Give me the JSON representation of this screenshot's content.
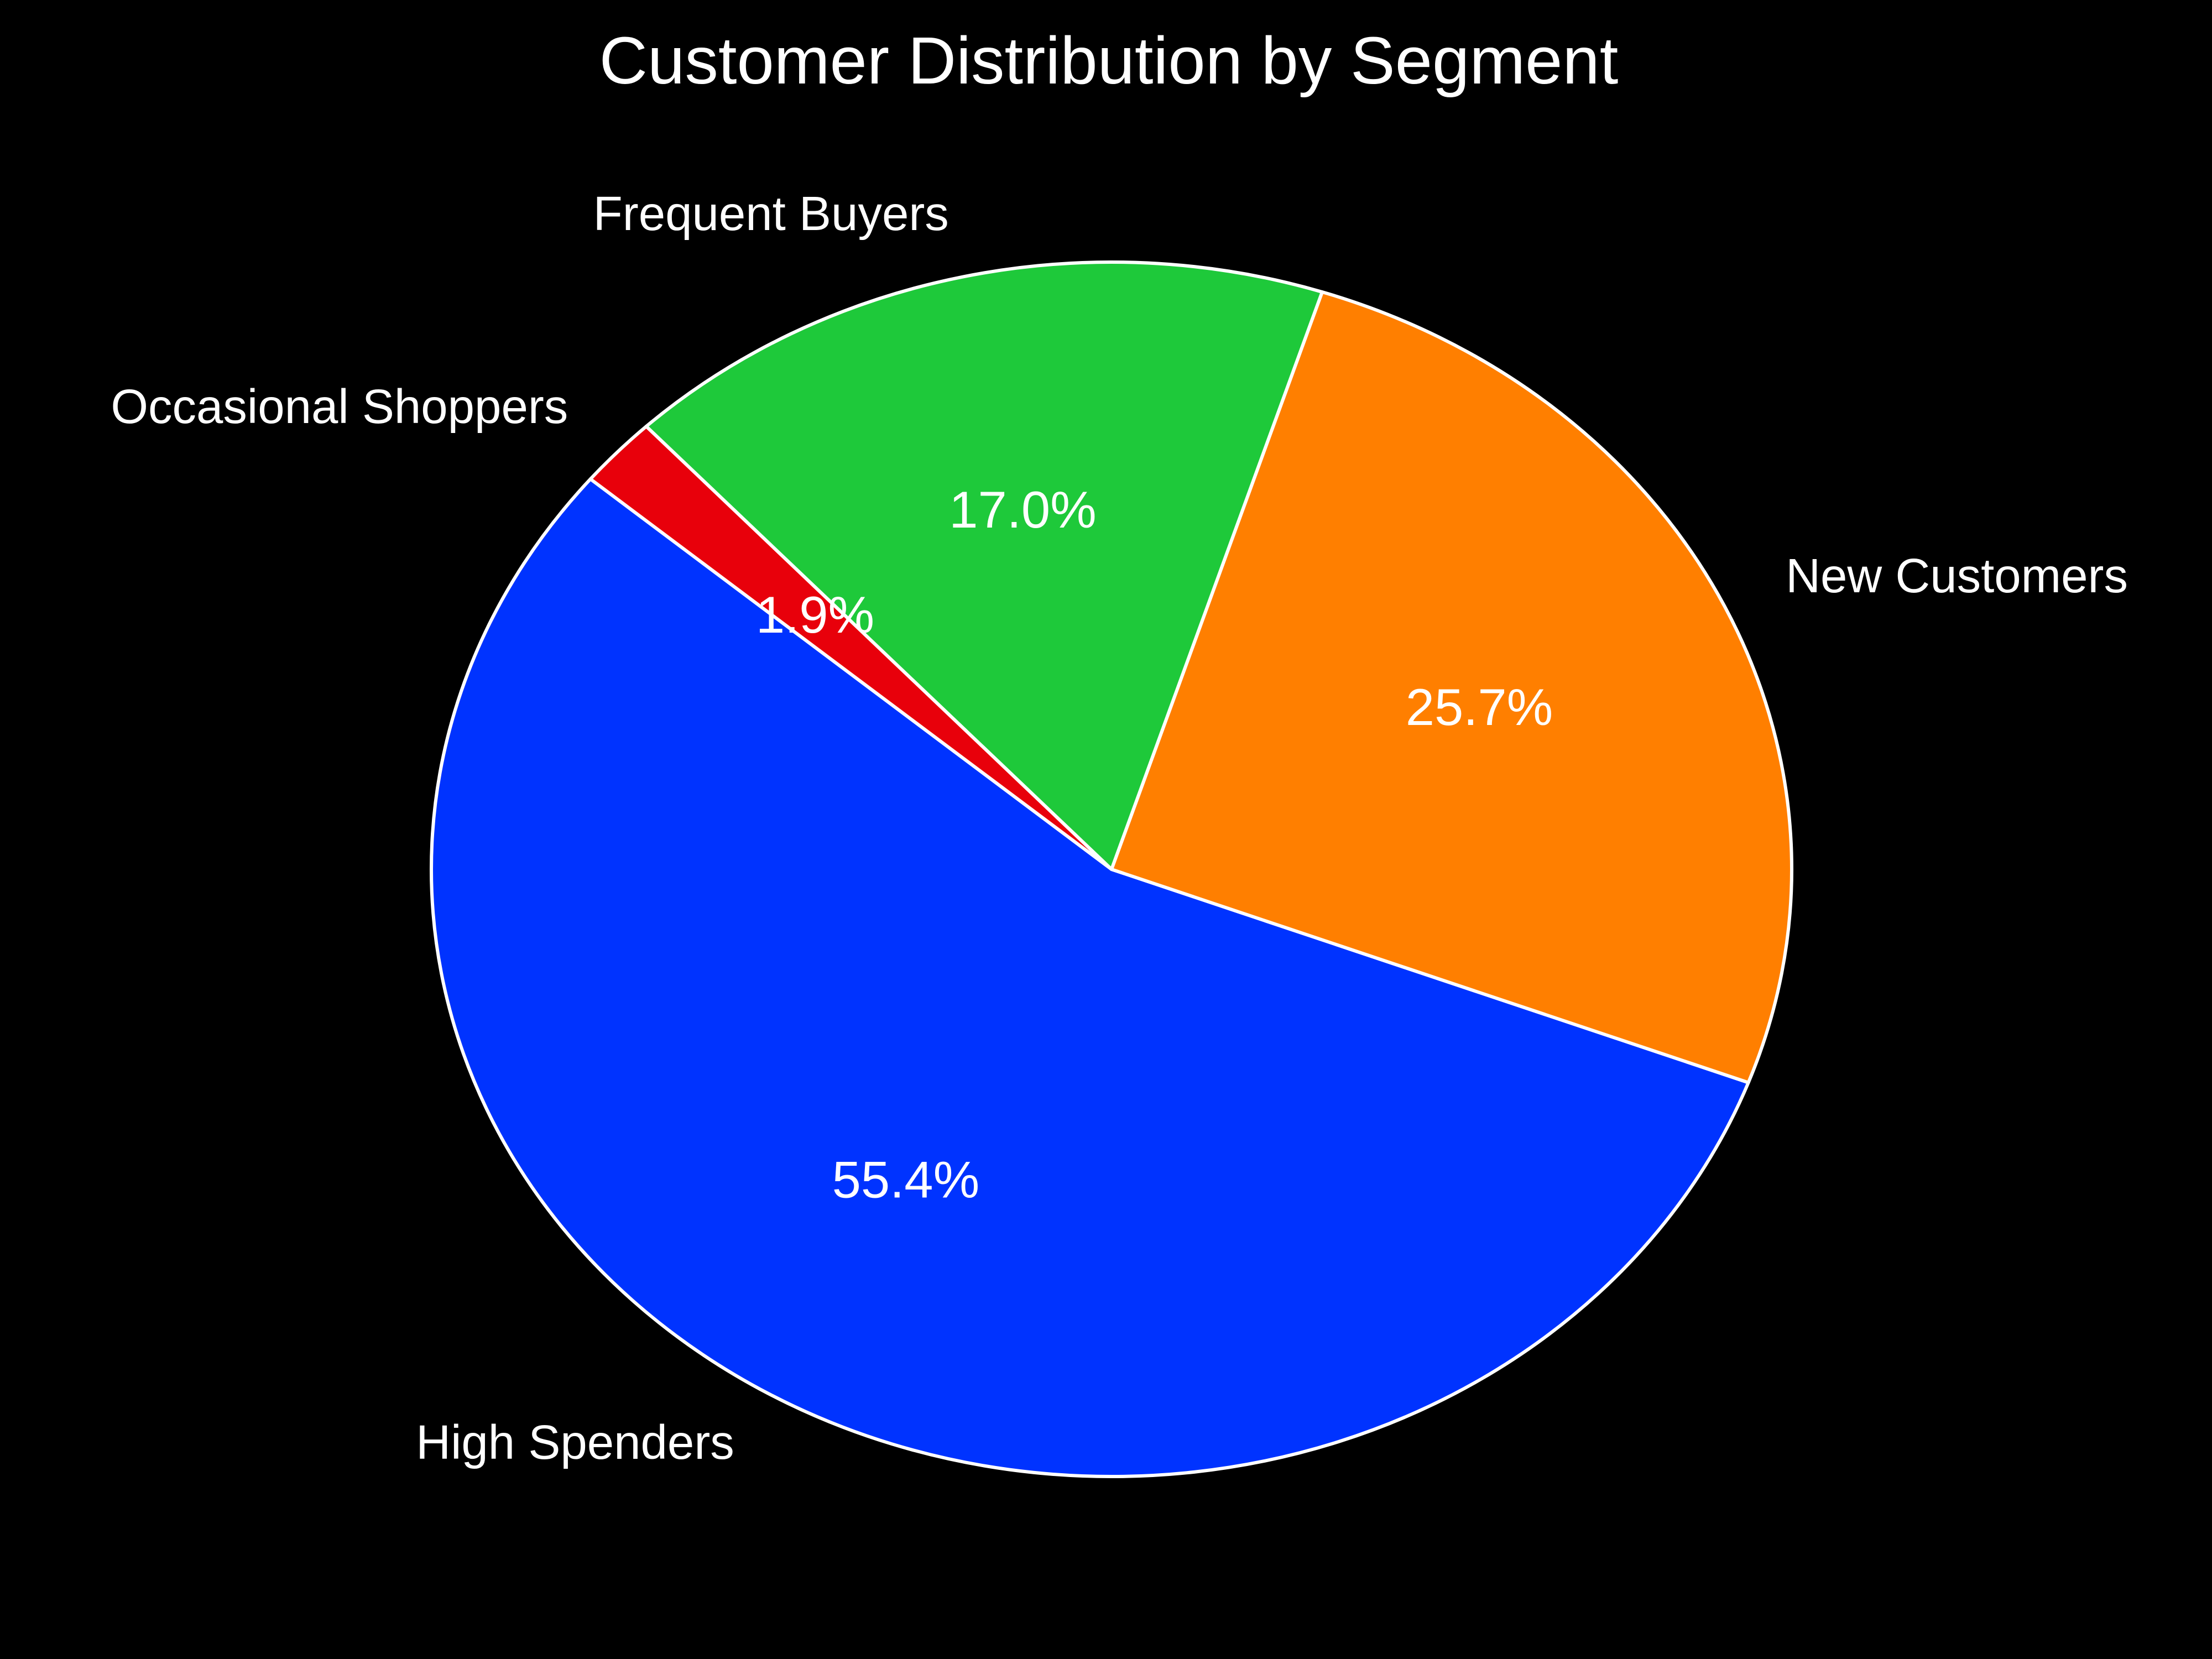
{
  "chart_data": {
    "type": "pie",
    "title": "Customer Distribution by Segment",
    "slices": [
      {
        "label": "High Spenders",
        "value": 55.4,
        "pct_label": "55.4%",
        "color": "#0033ff"
      },
      {
        "label": "New Customers",
        "value": 25.7,
        "pct_label": "25.7%",
        "color": "#ff7f00"
      },
      {
        "label": "Frequent Buyers",
        "value": 17.0,
        "pct_label": "17.0%",
        "color": "#1ec93a"
      },
      {
        "label": "Occasional Shoppers",
        "value": 1.9,
        "pct_label": "1.9%",
        "color": "#e8000b"
      }
    ],
    "start_angle_deg": 140,
    "direction": "counterclockwise",
    "edge_color": "#ffffff",
    "background": "#000000"
  }
}
